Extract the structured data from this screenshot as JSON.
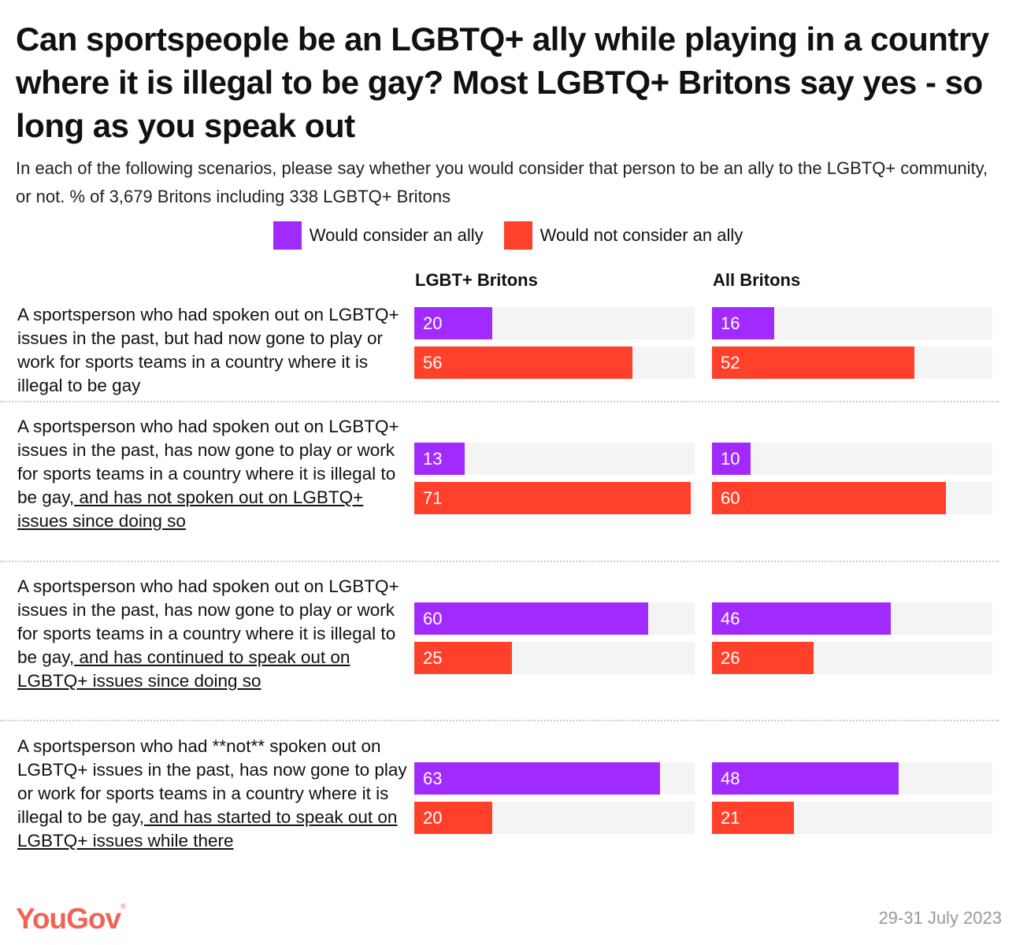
{
  "title": "Can sportspeople be an LGBTQ+ ally while playing in a country where it is illegal to be gay? Most LGBTQ+ Britons say yes - so long as you speak out",
  "subtitle": "In each of the following scenarios, please say whether you would consider that person to be an ally to the LGBTQ+ community, or not. % of 3,679 Britons including 338 LGBTQ+ Britons",
  "logo": "YouGov",
  "date": "29-31 July 2023",
  "colors": {
    "ally": "#a12bff",
    "not_ally": "#ff412c",
    "track": "#f4f4f4"
  },
  "chart_data": {
    "type": "bar",
    "orientation": "horizontal",
    "legend": {
      "placement": "top",
      "entries": [
        "Would consider an ally",
        "Would not consider an ally"
      ]
    },
    "panels": [
      "LGBT+ Britons",
      "All Britons"
    ],
    "categories": [
      {
        "segments": [
          {
            "text": "A sportsperson who had spoken out on LGBTQ+ issues in the past, but had now gone to play or work for sports teams in a country where it is illegal to be gay",
            "underline": false
          }
        ]
      },
      {
        "segments": [
          {
            "text": "A sportsperson who had spoken out on LGBTQ+ issues in the past, has now gone to play or work for sports teams in a country where it is illegal to be gay,",
            "underline": false
          },
          {
            "text": "and has not spoken out on LGBTQ+ issues since doing so",
            "underline": true
          }
        ]
      },
      {
        "segments": [
          {
            "text": "A sportsperson who had spoken out on LGBTQ+ issues in the past, has now gone to play or work for sports teams in a country where it is illegal to be gay,",
            "underline": false
          },
          {
            "text": "and has continued to speak out on LGBTQ+ issues since doing so",
            "underline": true
          }
        ]
      },
      {
        "segments": [
          {
            "text": "A sportsperson who had **not** spoken out on LGBTQ+ issues in the past, has now gone to play or work for sports teams in a country where it is illegal to be gay,",
            "underline": false
          },
          {
            "text": "and has started to speak out on LGBTQ+ issues while there",
            "underline": true
          }
        ]
      }
    ],
    "series": [
      {
        "name": "Would consider an ally",
        "panel_values": {
          "LGBT+ Britons": [
            20,
            13,
            60,
            63
          ],
          "All Britons": [
            16,
            10,
            46,
            48
          ]
        }
      },
      {
        "name": "Would not consider an ally",
        "panel_values": {
          "LGBT+ Britons": [
            56,
            71,
            25,
            20
          ],
          "All Britons": [
            52,
            60,
            26,
            21
          ]
        }
      }
    ],
    "xlim": [
      0,
      72
    ],
    "grid": false
  }
}
